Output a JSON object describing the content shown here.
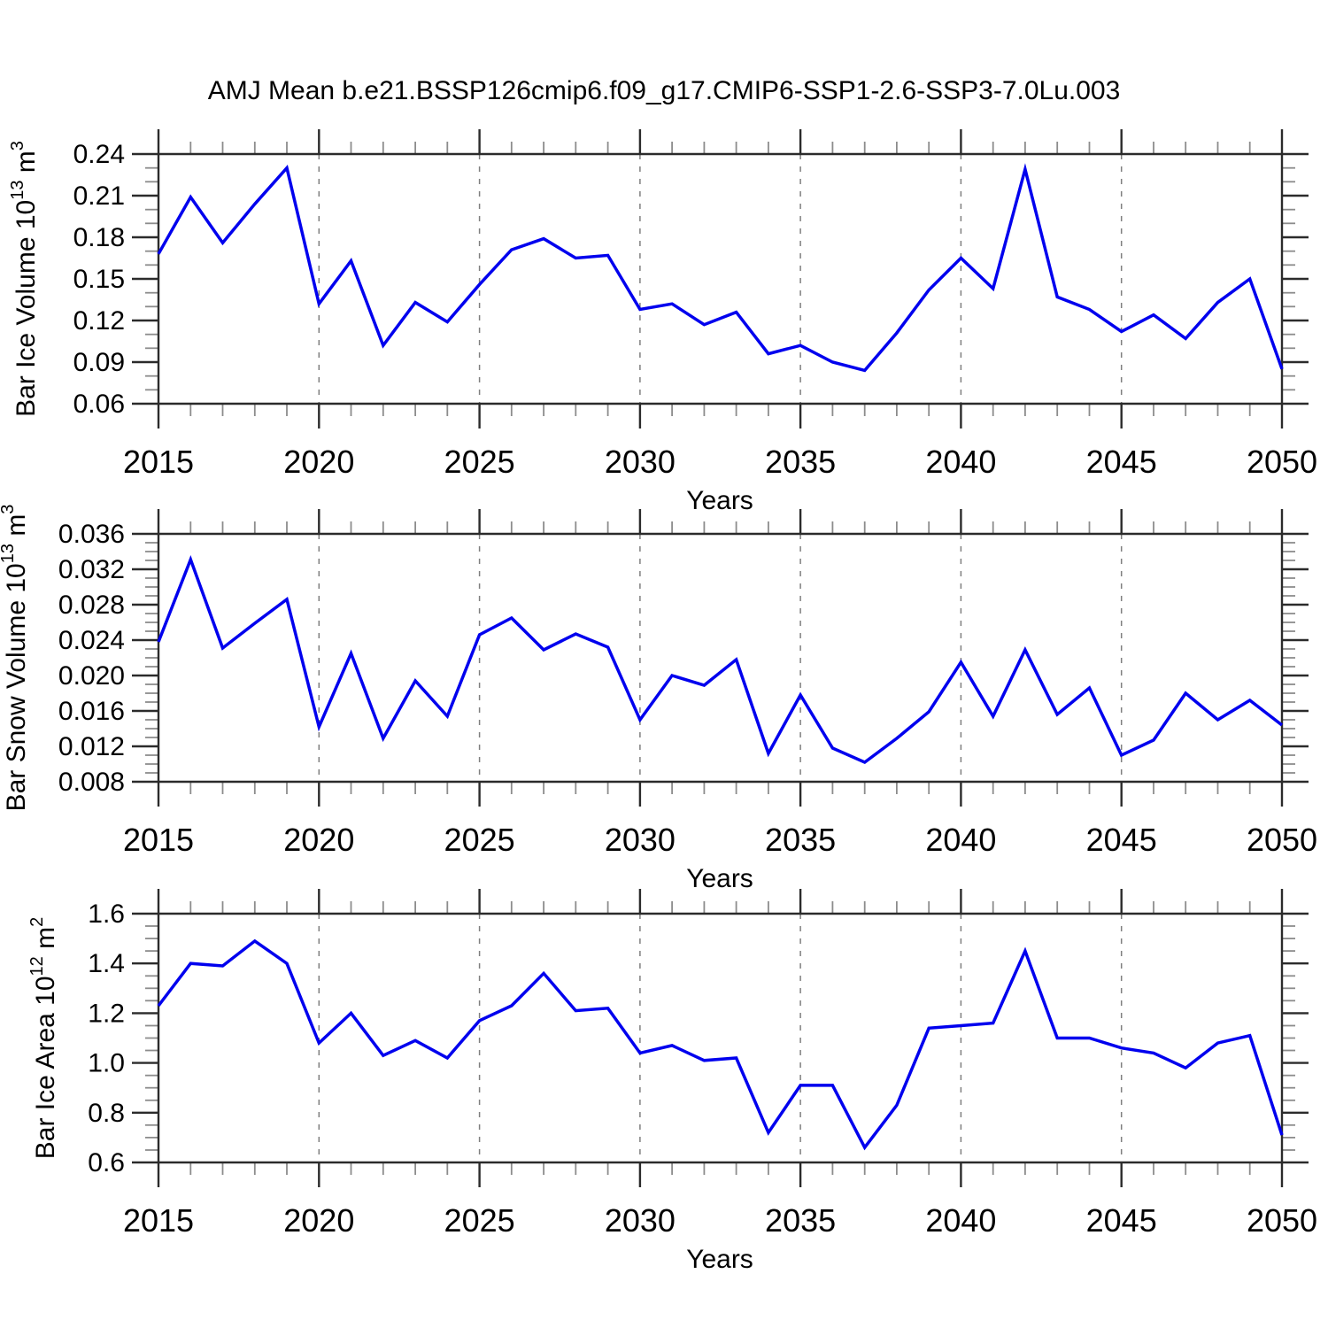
{
  "title": "AMJ Mean b.e21.BSSP126cmip6.f09_g17.CMIP6-SSP1-2.6-SSP3-7.0Lu.003",
  "x_axis": {
    "label": "Years",
    "range": [
      2015,
      2050
    ],
    "x_step": 1,
    "major_tick_step": 5,
    "tick_labels": [
      "2015",
      "2020",
      "2025",
      "2030",
      "2035",
      "2040",
      "2045",
      "2050"
    ],
    "grid_years": [
      2020,
      2025,
      2030,
      2035,
      2040,
      2045
    ]
  },
  "colors": {
    "line": "#0000ee",
    "axis": "#2b2b2b",
    "minor_tick": "#8c8c8c",
    "grid": "#7f7f7f",
    "text": "#000000",
    "background": "#ffffff"
  },
  "chart_data": [
    {
      "id": "bar-ice-volume",
      "type": "line",
      "xlabel": "Years",
      "ylabel": "Bar Ice Volume 10^13 m^3",
      "ylabel_parts": {
        "prefix": "Bar Ice Volume 10",
        "exp": "13",
        "unit": " m",
        "unit_exp": "3"
      },
      "line_color": "#0000ee",
      "ylim": [
        0.06,
        0.24
      ],
      "ytick_step": 0.03,
      "yminor_step": 0.01,
      "ytick_labels": [
        "0.06",
        "0.09",
        "0.12",
        "0.15",
        "0.18",
        "0.21",
        "0.24"
      ],
      "x_start": 2015,
      "values": [
        0.168,
        0.209,
        0.176,
        0.204,
        0.23,
        0.132,
        0.163,
        0.102,
        0.133,
        0.119,
        0.146,
        0.171,
        0.179,
        0.165,
        0.167,
        0.128,
        0.132,
        0.117,
        0.126,
        0.096,
        0.102,
        0.09,
        0.084,
        0.111,
        0.142,
        0.165,
        0.143,
        0.229,
        0.137,
        0.128,
        0.112,
        0.124,
        0.107,
        0.133,
        0.15,
        0.085
      ]
    },
    {
      "id": "bar-snow-volume",
      "type": "line",
      "xlabel": "Years",
      "ylabel": "Bar Snow Volume 10^13 m^3",
      "ylabel_parts": {
        "prefix": "Bar Snow Volume 10",
        "exp": "13",
        "unit": " m",
        "unit_exp": "3"
      },
      "line_color": "#0000ee",
      "ylim": [
        0.008,
        0.036
      ],
      "ytick_step": 0.004,
      "yminor_step": 0.001,
      "ytick_labels": [
        "0.008",
        "0.012",
        "0.016",
        "0.020",
        "0.024",
        "0.028",
        "0.032",
        "0.036"
      ],
      "x_start": 2015,
      "values": [
        0.0238,
        0.0331,
        0.0231,
        0.0259,
        0.0286,
        0.0142,
        0.0225,
        0.0129,
        0.0194,
        0.0154,
        0.0246,
        0.0265,
        0.0229,
        0.0247,
        0.0232,
        0.015,
        0.02,
        0.0189,
        0.0218,
        0.0112,
        0.0178,
        0.0118,
        0.0102,
        0.0129,
        0.0159,
        0.0215,
        0.0154,
        0.0229,
        0.0156,
        0.0186,
        0.011,
        0.0127,
        0.018,
        0.015,
        0.0172,
        0.0144
      ]
    },
    {
      "id": "bar-ice-area",
      "type": "line",
      "xlabel": "Years",
      "ylabel": "Bar Ice Area 10^12 m^2",
      "ylabel_parts": {
        "prefix": "Bar Ice Area 10",
        "exp": "12",
        "unit": " m",
        "unit_exp": "2"
      },
      "line_color": "#0000ee",
      "ylim": [
        0.6,
        1.6
      ],
      "ytick_step": 0.2,
      "yminor_step": 0.05,
      "ytick_labels": [
        "0.6",
        "0.8",
        "1.0",
        "1.2",
        "1.4",
        "1.6"
      ],
      "x_start": 2015,
      "values": [
        1.23,
        1.4,
        1.39,
        1.49,
        1.4,
        1.08,
        1.2,
        1.03,
        1.09,
        1.02,
        1.17,
        1.23,
        1.36,
        1.21,
        1.22,
        1.04,
        1.07,
        1.01,
        1.02,
        0.72,
        0.91,
        0.91,
        0.66,
        0.83,
        1.14,
        1.15,
        1.16,
        1.45,
        1.1,
        1.1,
        1.06,
        1.04,
        0.98,
        1.08,
        1.11,
        0.71
      ]
    }
  ]
}
